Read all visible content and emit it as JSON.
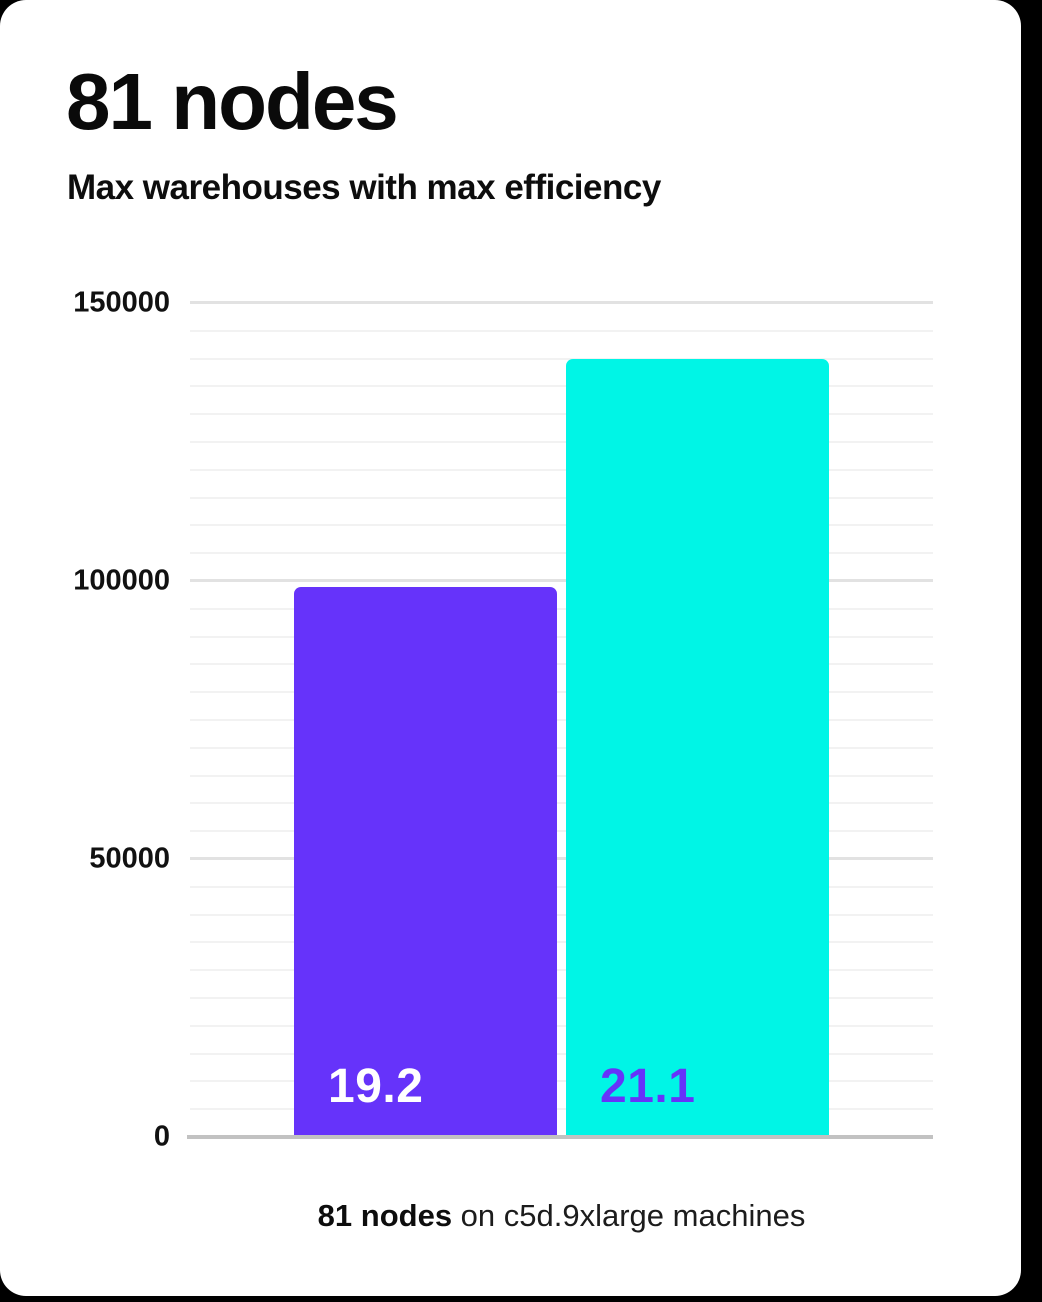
{
  "page": {
    "background_color": "#000000",
    "card_color": "#ffffff"
  },
  "header": {
    "title": "81 nodes",
    "subtitle": "Max warehouses with max efficiency"
  },
  "chart_data": {
    "type": "bar",
    "title": "81 nodes",
    "subtitle": "Max warehouses with max efficiency",
    "categories": [
      "19.2",
      "21.1"
    ],
    "values": [
      99000,
      140000
    ],
    "bars": [
      {
        "label": "19.2",
        "value": 99000,
        "color": "#6633FA",
        "label_color": "#ffffff"
      },
      {
        "label": "21.1",
        "value": 140000,
        "color": "#00F5E6",
        "label_color": "#6633FA"
      }
    ],
    "xlabel": "",
    "ylabel": "",
    "ylim": [
      0,
      150000
    ],
    "yticks": [
      0,
      50000,
      100000,
      150000
    ],
    "minor_grid_step": 5000,
    "major_grid_step": 50000,
    "grid": true,
    "legend": "none",
    "caption": "81 nodes on c5d.9xlarge machines"
  },
  "footer": {
    "caption_bold": "81 nodes",
    "caption_rest": " on c5d.9xlarge machines"
  }
}
